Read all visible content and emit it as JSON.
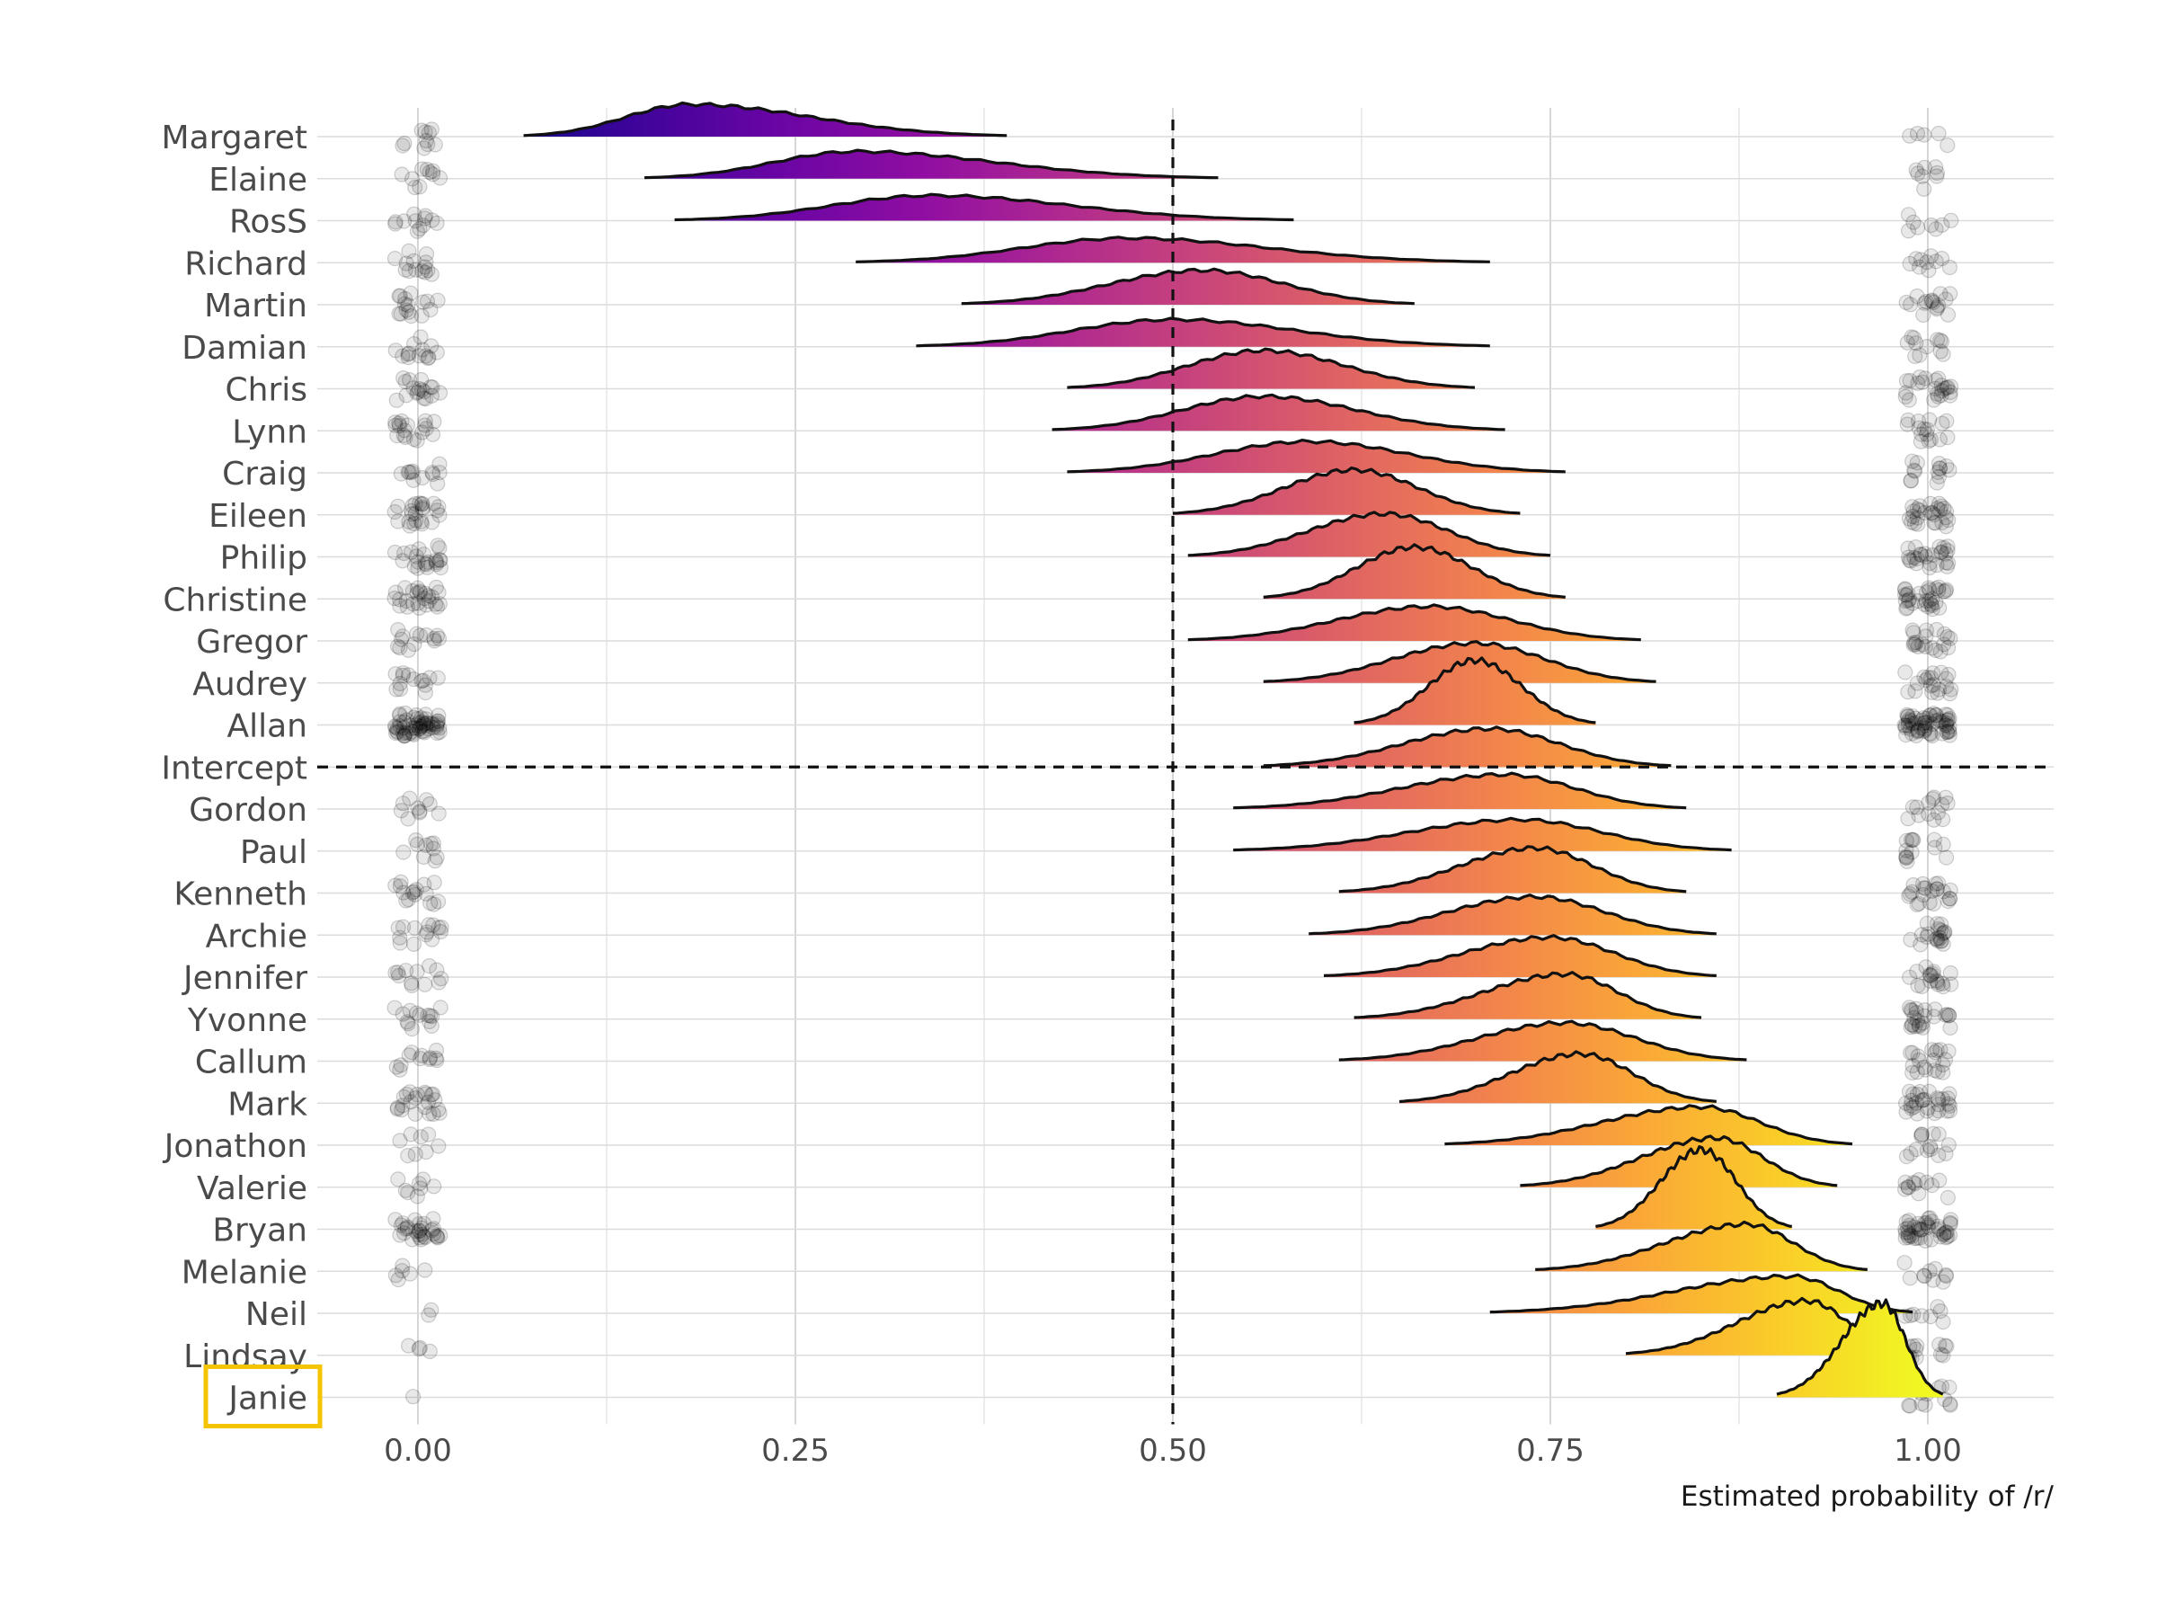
{
  "chart_data": {
    "type": "ridgeline",
    "xlabel": "Estimated probability of /r/",
    "xlim": [
      -0.07,
      1.07
    ],
    "x_ticks": [
      0.0,
      0.25,
      0.5,
      0.75,
      1.0
    ],
    "x_tick_labels": [
      "0.00",
      "0.25",
      "0.50",
      "0.75",
      "1.00"
    ],
    "reference_line_x": 0.5,
    "reference_category": "Intercept",
    "highlighted_category": "Janie",
    "highlight_color": "#f5c400",
    "colormap": "plasma",
    "grid": true,
    "categories": [
      {
        "name": "Margaret",
        "lo": 0.07,
        "hi": 0.39,
        "mode": 0.18,
        "n0": 10,
        "n1": 5
      },
      {
        "name": "Elaine",
        "lo": 0.15,
        "hi": 0.53,
        "mode": 0.29,
        "n0": 10,
        "n1": 8
      },
      {
        "name": "RosS",
        "lo": 0.17,
        "hi": 0.58,
        "mode": 0.34,
        "n0": 12,
        "n1": 8
      },
      {
        "name": "Richard",
        "lo": 0.29,
        "hi": 0.71,
        "mode": 0.47,
        "n0": 14,
        "n1": 10
      },
      {
        "name": "Martin",
        "lo": 0.36,
        "hi": 0.66,
        "mode": 0.52,
        "n0": 16,
        "n1": 16
      },
      {
        "name": "Damian",
        "lo": 0.33,
        "hi": 0.71,
        "mode": 0.5,
        "n0": 14,
        "n1": 12
      },
      {
        "name": "Chris",
        "lo": 0.43,
        "hi": 0.7,
        "mode": 0.56,
        "n0": 18,
        "n1": 24
      },
      {
        "name": "Lynn",
        "lo": 0.42,
        "hi": 0.72,
        "mode": 0.56,
        "n0": 18,
        "n1": 16
      },
      {
        "name": "Craig",
        "lo": 0.43,
        "hi": 0.76,
        "mode": 0.59,
        "n0": 12,
        "n1": 14
      },
      {
        "name": "Eileen",
        "lo": 0.5,
        "hi": 0.73,
        "mode": 0.62,
        "n0": 24,
        "n1": 28
      },
      {
        "name": "Philip",
        "lo": 0.51,
        "hi": 0.75,
        "mode": 0.64,
        "n0": 22,
        "n1": 26
      },
      {
        "name": "Christine",
        "lo": 0.56,
        "hi": 0.76,
        "mode": 0.66,
        "n0": 26,
        "n1": 32
      },
      {
        "name": "Gregor",
        "lo": 0.51,
        "hi": 0.81,
        "mode": 0.67,
        "n0": 14,
        "n1": 20
      },
      {
        "name": "Audrey",
        "lo": 0.56,
        "hi": 0.82,
        "mode": 0.7,
        "n0": 14,
        "n1": 20
      },
      {
        "name": "Allan",
        "lo": 0.62,
        "hi": 0.78,
        "mode": 0.7,
        "n0": 60,
        "n1": 60
      },
      {
        "name": "Intercept",
        "lo": 0.56,
        "hi": 0.83,
        "mode": 0.71,
        "n0": 0,
        "n1": 0
      },
      {
        "name": "Gordon",
        "lo": 0.54,
        "hi": 0.84,
        "mode": 0.72,
        "n0": 10,
        "n1": 14
      },
      {
        "name": "Paul",
        "lo": 0.54,
        "hi": 0.87,
        "mode": 0.73,
        "n0": 10,
        "n1": 14
      },
      {
        "name": "Kenneth",
        "lo": 0.61,
        "hi": 0.84,
        "mode": 0.74,
        "n0": 16,
        "n1": 22
      },
      {
        "name": "Archie",
        "lo": 0.59,
        "hi": 0.86,
        "mode": 0.74,
        "n0": 14,
        "n1": 20
      },
      {
        "name": "Jennifer",
        "lo": 0.6,
        "hi": 0.86,
        "mode": 0.75,
        "n0": 12,
        "n1": 18
      },
      {
        "name": "Yvonne",
        "lo": 0.62,
        "hi": 0.85,
        "mode": 0.76,
        "n0": 14,
        "n1": 24
      },
      {
        "name": "Callum",
        "lo": 0.61,
        "hi": 0.88,
        "mode": 0.76,
        "n0": 12,
        "n1": 20
      },
      {
        "name": "Mark",
        "lo": 0.65,
        "hi": 0.86,
        "mode": 0.77,
        "n0": 22,
        "n1": 30
      },
      {
        "name": "Jonathon",
        "lo": 0.68,
        "hi": 0.95,
        "mode": 0.85,
        "n0": 8,
        "n1": 14
      },
      {
        "name": "Valerie",
        "lo": 0.73,
        "hi": 0.94,
        "mode": 0.86,
        "n0": 8,
        "n1": 12
      },
      {
        "name": "Bryan",
        "lo": 0.78,
        "hi": 0.91,
        "mode": 0.85,
        "n0": 30,
        "n1": 44
      },
      {
        "name": "Melanie",
        "lo": 0.74,
        "hi": 0.96,
        "mode": 0.88,
        "n0": 6,
        "n1": 10
      },
      {
        "name": "Neil",
        "lo": 0.71,
        "hi": 0.99,
        "mode": 0.91,
        "n0": 2,
        "n1": 8
      },
      {
        "name": "Lindsay",
        "lo": 0.8,
        "hi": 0.99,
        "mode": 0.92,
        "n0": 4,
        "n1": 12
      },
      {
        "name": "Janie",
        "lo": 0.9,
        "hi": 1.01,
        "mode": 0.97,
        "n0": 1,
        "n1": 12
      }
    ]
  }
}
